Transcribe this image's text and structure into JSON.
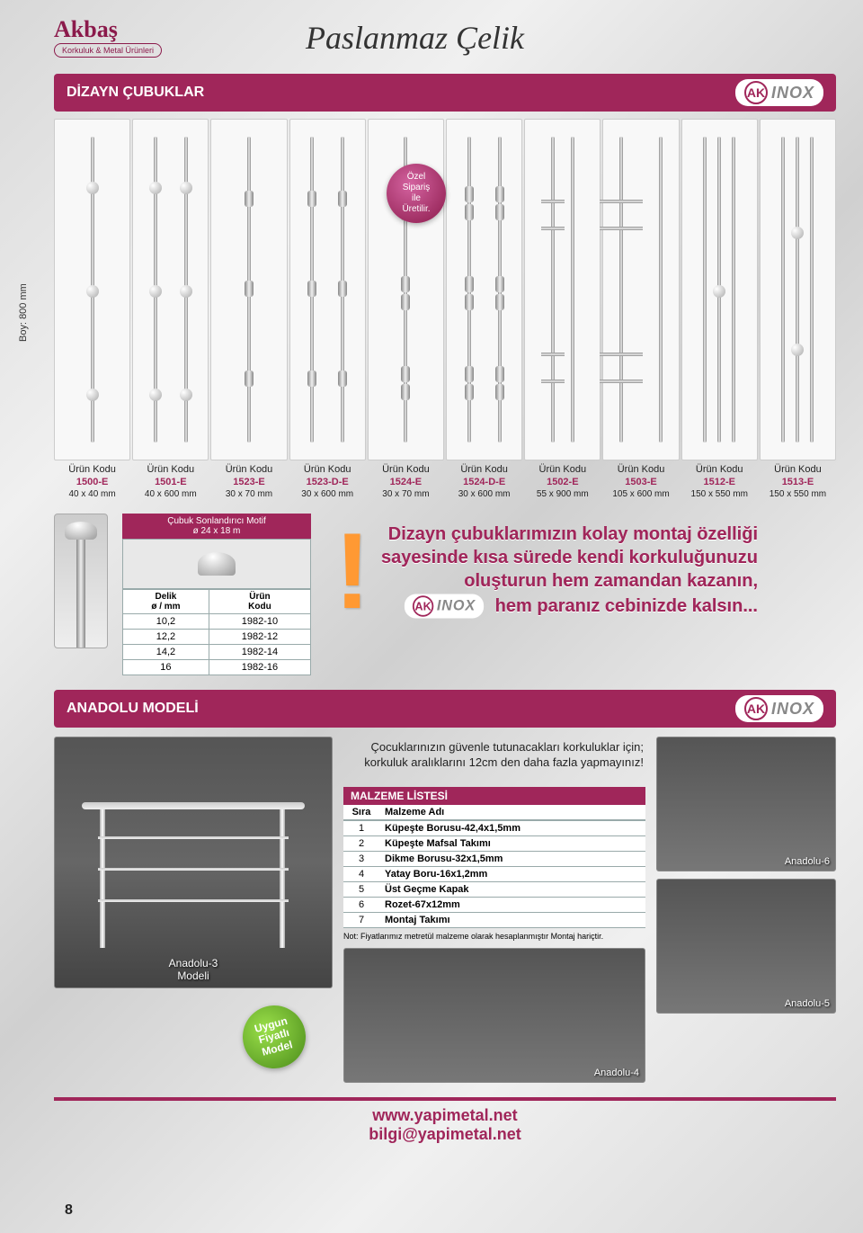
{
  "header": {
    "logo_text": "Akbaş",
    "logo_sub": "Korkuluk & Metal Ürünleri",
    "page_title": "Paslanmaz Çelik"
  },
  "section1": {
    "title": "DİZAYN ÇUBUKLAR",
    "badge_ak": "AK",
    "badge_inox": "INOX",
    "boy_label": "Boy: 800 mm",
    "special_order": "Özel\nSipariş\nile\nÜretilir.",
    "label_head": "Ürün Kodu",
    "products": [
      {
        "code": "1500-E",
        "dim": "40 x 40 mm"
      },
      {
        "code": "1501-E",
        "dim": "40 x 600 mm"
      },
      {
        "code": "1523-E",
        "dim": "30 x 70 mm"
      },
      {
        "code": "1523-D-E",
        "dim": "30 x 600 mm"
      },
      {
        "code": "1524-E",
        "dim": "30 x 70 mm"
      },
      {
        "code": "1524-D-E",
        "dim": "30 x 600 mm"
      },
      {
        "code": "1502-E",
        "dim": "55 x 900 mm"
      },
      {
        "code": "1503-E",
        "dim": "105 x 600 mm"
      },
      {
        "code": "1512-E",
        "dim": "150 x 550 mm"
      },
      {
        "code": "1513-E",
        "dim": "150 x 550 mm"
      }
    ]
  },
  "motif": {
    "title": "Çubuk Sonlandırıcı Motif",
    "subtitle": "ø 24 x 18 m",
    "col1": "Delik\nø / mm",
    "col2": "Ürün\nKodu",
    "rows": [
      {
        "d": "10,2",
        "c": "1982-10"
      },
      {
        "d": "12,2",
        "c": "1982-12"
      },
      {
        "d": "14,2",
        "c": "1982-14"
      },
      {
        "d": "16",
        "c": "1982-16"
      }
    ]
  },
  "promo": {
    "line1": "Dizayn çubuklarımızın kolay montaj özelliği",
    "line2": "sayesinde kısa sürede kendi korkuluğunuzu",
    "line3": "oluşturun hem zamandan kazanın,",
    "line4": "hem paranız cebinizde kalsın..."
  },
  "section2": {
    "title": "ANADOLU MODELİ",
    "main_model_label": "Anadolu-3\nModeli",
    "green_badge": "Uygun\nFiyatlı\nModel",
    "warn": "Çocuklarınızın güvenle tutunacakları korkuluklar için; korkuluk aralıklarını 12cm den daha fazla yapmayınız!",
    "mat_title": "MALZEME LİSTESİ",
    "mat_col1": "Sıra",
    "mat_col2": "Malzeme Adı",
    "materials": [
      {
        "n": "1",
        "name": "Küpeşte Borusu-42,4x1,5mm"
      },
      {
        "n": "2",
        "name": "Küpeşte Mafsal Takımı"
      },
      {
        "n": "3",
        "name": "Dikme Borusu-32x1,5mm"
      },
      {
        "n": "4",
        "name": "Yatay Boru-16x1,2mm"
      },
      {
        "n": "5",
        "name": "Üst Geçme Kapak"
      },
      {
        "n": "6",
        "name": "Rozet-67x12mm"
      },
      {
        "n": "7",
        "name": "Montaj Takımı"
      }
    ],
    "mat_note": "Not: Fiyatlarımız metretül malzeme olarak hesaplanmıştır Montaj hariçtir.",
    "thumbs": {
      "a6": "Anadolu-6",
      "a4": "Anadolu-4",
      "a5": "Anadolu-5"
    }
  },
  "footer": {
    "url": "www.yapimetal.net",
    "email": "bilgi@yapimetal.net",
    "page_num": "8"
  },
  "colors": {
    "brand": "#a0265a",
    "brand_dark": "#8b1a4b",
    "green": "#5fa51f",
    "orange": "#ff9933",
    "grey_bg": "#e0e0e0"
  }
}
